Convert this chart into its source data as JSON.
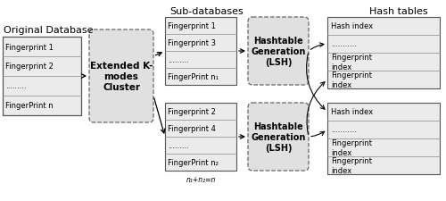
{
  "bg_color": "#ffffff",
  "box_fill": "#e8e8e8",
  "box_edge": "#666666",
  "title_fontsize": 8.0,
  "label_fontsize": 6.5,
  "small_fontsize": 6.0,
  "orig_db_title": "Original Database",
  "orig_db_items": [
    "Fingerprint 1",
    "Fingerprint 2",
    ".........",
    "FingerPrint n"
  ],
  "cluster_label": "Extended K-\nmodes\nCluster",
  "sub_db_title": "Sub-databases",
  "sub_db1_items": [
    "Fingerprint 1",
    "Fingerprint 3",
    ".........",
    "FingerPrint n₁"
  ],
  "sub_db2_items": [
    "Fingerprint 2",
    "Fingerprint 4",
    ".........",
    "FingerPrint n₂"
  ],
  "hash_gen_label": "Hashtable\nGeneration\n(LSH)",
  "hash_tables_title": "Hash tables",
  "hash_table1_items": [
    "Hash index",
    "...........",
    "Fingerprint\nindex",
    "Fingerprint\nindex"
  ],
  "hash_table2_items": [
    "Hash index",
    "...........",
    "Fingerprint\nindex",
    "Fingerprint\nindex"
  ],
  "sub_note": "n₁+n₂=n"
}
